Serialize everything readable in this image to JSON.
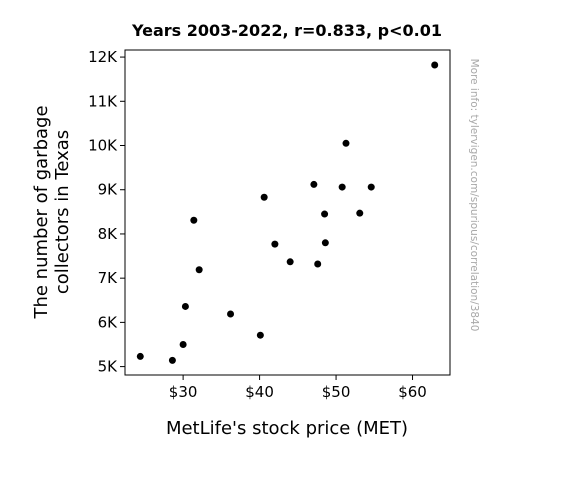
{
  "chart_data": {
    "type": "scatter",
    "title": "Years 2003-2022, r=0.833, p<0.01",
    "xlabel": "MetLife's stock price (MET)",
    "ylabel_lines": [
      "The number of garbage",
      "collectors in Texas"
    ],
    "watermark": "More info: tylervigen.com/spurious/correlation/3840",
    "xlim": [
      22.4,
      64.9
    ],
    "ylim": [
      4810,
      12160
    ],
    "x_ticks": [
      30,
      40,
      50,
      60
    ],
    "x_tick_labels": [
      "$30",
      "$40",
      "$50",
      "$60"
    ],
    "y_ticks": [
      5000,
      6000,
      7000,
      8000,
      9000,
      10000,
      11000,
      12000
    ],
    "y_tick_labels": [
      "5K",
      "6K",
      "7K",
      "8K",
      "9K",
      "10K",
      "11K",
      "12K"
    ],
    "grid": false,
    "marker_color": "#000000",
    "points": [
      {
        "x": 24.4,
        "y": 5230
      },
      {
        "x": 28.6,
        "y": 5140
      },
      {
        "x": 30.0,
        "y": 5500
      },
      {
        "x": 30.3,
        "y": 6360
      },
      {
        "x": 31.4,
        "y": 8310
      },
      {
        "x": 32.1,
        "y": 7190
      },
      {
        "x": 36.2,
        "y": 6190
      },
      {
        "x": 40.1,
        "y": 5710
      },
      {
        "x": 40.6,
        "y": 8830
      },
      {
        "x": 42.0,
        "y": 7770
      },
      {
        "x": 44.0,
        "y": 7370
      },
      {
        "x": 47.1,
        "y": 9120
      },
      {
        "x": 47.6,
        "y": 7320
      },
      {
        "x": 48.5,
        "y": 8450
      },
      {
        "x": 48.6,
        "y": 7800
      },
      {
        "x": 50.8,
        "y": 9060
      },
      {
        "x": 51.3,
        "y": 10050
      },
      {
        "x": 53.1,
        "y": 8470
      },
      {
        "x": 54.6,
        "y": 9060
      },
      {
        "x": 62.9,
        "y": 11820
      }
    ]
  }
}
